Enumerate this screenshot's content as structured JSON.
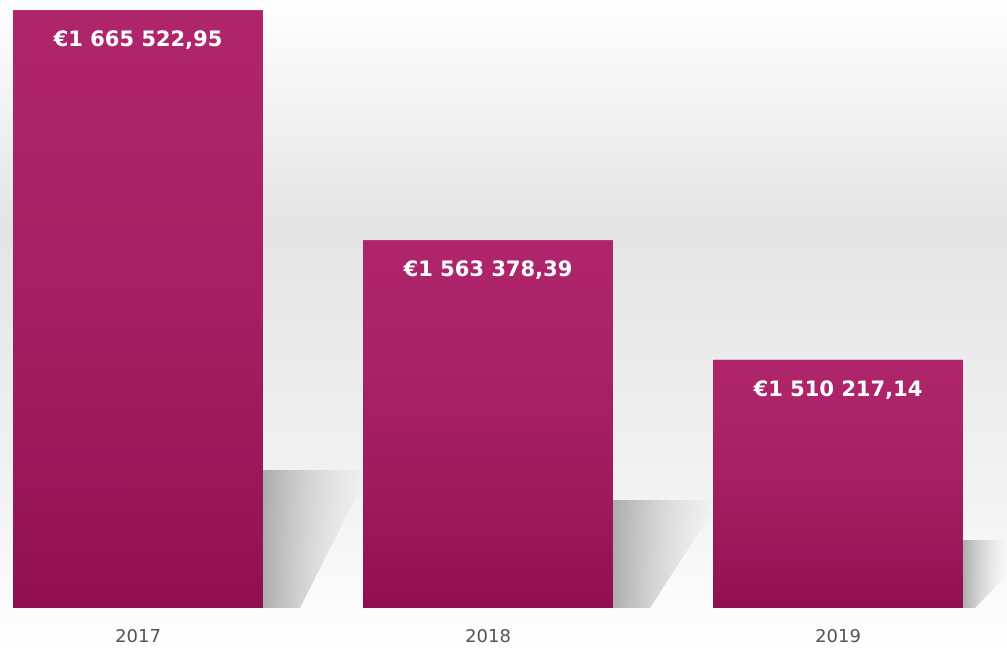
{
  "chart_data": {
    "type": "bar",
    "categories": [
      "2017",
      "2018",
      "2019"
    ],
    "values": [
      1665522.95,
      1563378.39,
      1510217.14
    ],
    "value_labels": [
      "€1 665 522,95",
      "€1 563 378,39",
      "€1 510 217,14"
    ],
    "color": "#a8125f",
    "ylim": [
      1400000,
      1670000
    ]
  }
}
